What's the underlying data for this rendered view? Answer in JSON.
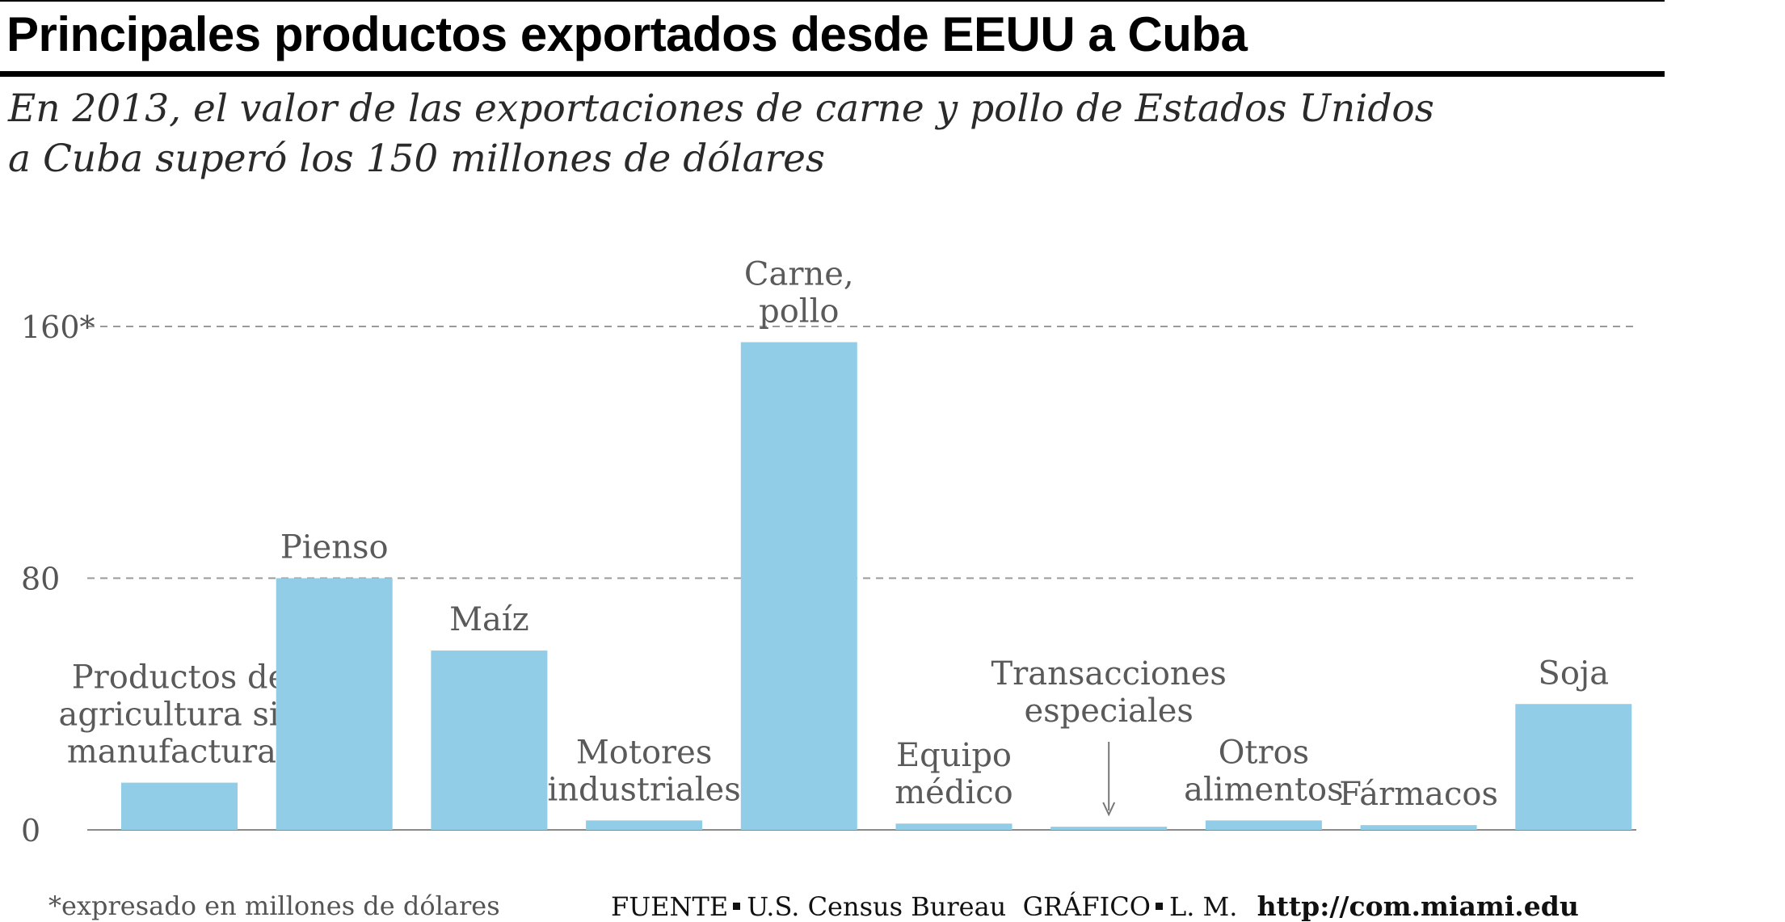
{
  "header": {
    "title": "Principales productos exportados desde EEUU a Cuba",
    "subtitle_line1": "En 2013, el valor de las exportaciones de carne y pollo de Estados Unidos",
    "subtitle_line2": "a Cuba superó los 150 millones de dólares"
  },
  "chart_data": {
    "type": "bar",
    "categories": [
      [
        "Productos de",
        "agricultura sin",
        "manufacturar"
      ],
      [
        "Pienso"
      ],
      [
        "Maíz"
      ],
      [
        "Motores",
        "industriales"
      ],
      [
        "Carne,",
        "pollo"
      ],
      [
        "Equipo",
        "médico"
      ],
      [
        "Transacciones",
        "especiales"
      ],
      [
        "Otros",
        "alimentos"
      ],
      [
        "Fármacos"
      ],
      [
        "Soja"
      ]
    ],
    "values": [
      15,
      80,
      57,
      3,
      155,
      2,
      1,
      3,
      1.5,
      40
    ],
    "ylim": [
      0,
      160
    ],
    "yticks": [
      0,
      80,
      160
    ],
    "ytick_labels": [
      "0",
      "80",
      "160*"
    ],
    "grid": true,
    "bar_color": "#91cde6",
    "arrow_category_index": 6
  },
  "footer": {
    "footnote": "*expresado  en millones de dólares",
    "source_label": "FUENTE",
    "source_value": "U.S. Census Bureau",
    "graphic_label": "GRÁFICO",
    "graphic_value": "L. M.",
    "url": "http://com.miami.edu"
  }
}
